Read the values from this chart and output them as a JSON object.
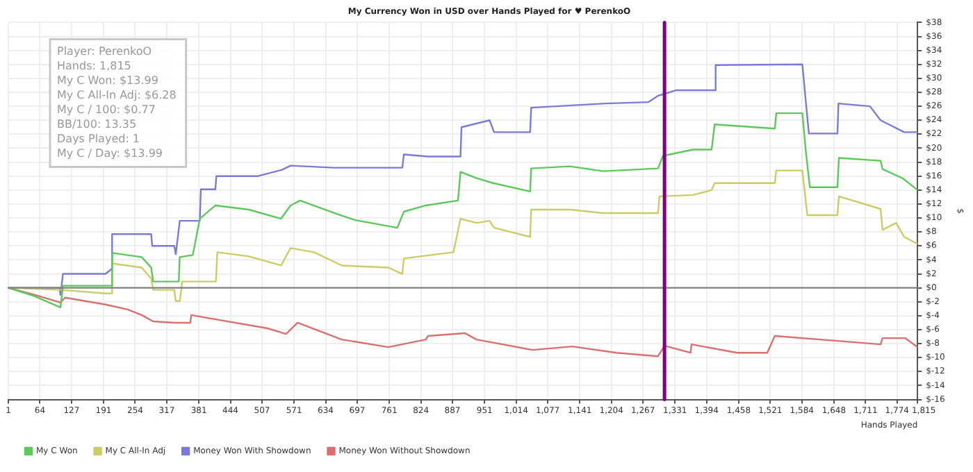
{
  "chart_data": {
    "type": "line",
    "title": "My Currency Won in USD over Hands Played for ♥ PerenkoO",
    "xlabel": "Hands Played",
    "ylabel": "$",
    "xlim": [
      1,
      1815
    ],
    "xticks": [
      1,
      64,
      127,
      191,
      254,
      317,
      381,
      444,
      507,
      571,
      634,
      697,
      761,
      824,
      887,
      951,
      {
        "value": 1014,
        "label": "1,014"
      },
      {
        "value": 1077,
        "label": "1,077"
      },
      {
        "value": 1141,
        "label": "1,141"
      },
      {
        "value": 1204,
        "label": "1,204"
      },
      {
        "value": 1267,
        "label": "1,267"
      },
      {
        "value": 1331,
        "label": "1,331"
      },
      {
        "value": 1394,
        "label": "1,394"
      },
      {
        "value": 1458,
        "label": "1,458"
      },
      {
        "value": 1521,
        "label": "1,521"
      },
      {
        "value": 1584,
        "label": "1,584"
      },
      {
        "value": 1648,
        "label": "1,648"
      },
      {
        "value": 1711,
        "label": "1,711"
      },
      {
        "value": 1774,
        "label": "1,774"
      },
      {
        "value": 1815,
        "label": "1,815"
      }
    ],
    "ylim": [
      -16,
      38
    ],
    "yticks": [
      {
        "value": -16,
        "label": "$-16"
      },
      {
        "value": -14,
        "label": "$-14"
      },
      {
        "value": -12,
        "label": "$-12"
      },
      {
        "value": -10,
        "label": "$-10"
      },
      {
        "value": -8,
        "label": "$-8"
      },
      {
        "value": -6,
        "label": "$-6"
      },
      {
        "value": -4,
        "label": "$-4"
      },
      {
        "value": -2,
        "label": "$-2"
      },
      {
        "value": 0,
        "label": "$0"
      },
      {
        "value": 2,
        "label": "$2"
      },
      {
        "value": 4,
        "label": "$4"
      },
      {
        "value": 6,
        "label": "$6"
      },
      {
        "value": 8,
        "label": "$8"
      },
      {
        "value": 10,
        "label": "$10"
      },
      {
        "value": 12,
        "label": "$12"
      },
      {
        "value": 14,
        "label": "$14"
      },
      {
        "value": 16,
        "label": "$16"
      },
      {
        "value": 18,
        "label": "$18"
      },
      {
        "value": 20,
        "label": "$20"
      },
      {
        "value": 22,
        "label": "$22"
      },
      {
        "value": 24,
        "label": "$24"
      },
      {
        "value": 26,
        "label": "$26"
      },
      {
        "value": 28,
        "label": "$28"
      },
      {
        "value": 30,
        "label": "$30"
      },
      {
        "value": 32,
        "label": "$32"
      },
      {
        "value": 34,
        "label": "$34"
      },
      {
        "value": 36,
        "label": "$36"
      },
      {
        "value": 38,
        "label": "$38"
      }
    ],
    "grid": true,
    "legend": "bottom left",
    "marker": "none",
    "line_style": "solid",
    "series": [
      {
        "name": "My C Won",
        "color": "#5cc85c",
        "x": [
          1,
          53,
          105,
          110,
          207,
          208,
          267,
          286,
          290,
          341,
          343,
          369,
          383,
          414,
          481,
          545,
          564,
          583,
          656,
          693,
          777,
          790,
          834,
          898,
          903,
          935,
          968,
          1042,
          1044,
          1121,
          1188,
          1297,
          1307,
          1367,
          1404,
          1410,
          1530,
          1533,
          1585,
          1592,
          1600,
          1655,
          1658,
          1741,
          1745,
          1785,
          1815
        ],
        "values": [
          0,
          -1.2,
          -2.8,
          0.3,
          0.3,
          5.0,
          4.4,
          2.9,
          0.9,
          0.9,
          4.4,
          4.7,
          9.9,
          11.8,
          11.2,
          9.9,
          11.8,
          12.5,
          10.6,
          9.7,
          8.6,
          10.9,
          11.8,
          12.5,
          16.6,
          15.7,
          15.0,
          13.8,
          17.1,
          17.4,
          16.7,
          17.1,
          18.9,
          19.8,
          19.8,
          23.4,
          22.8,
          25.0,
          25.0,
          19.5,
          14.4,
          14.4,
          18.6,
          18.2,
          17.0,
          15.7,
          13.99
        ]
      },
      {
        "name": "My C All-In Adj",
        "color": "#cccc66",
        "x": [
          1,
          105,
          195,
          207,
          208,
          267,
          286,
          290,
          332,
          335,
          343,
          348,
          369,
          415,
          418,
          481,
          545,
          564,
          611,
          666,
          759,
          787,
          790,
          889,
          903,
          935,
          961,
          970,
          1042,
          1044,
          1121,
          1188,
          1297,
          1300,
          1367,
          1404,
          1410,
          1530,
          1533,
          1585,
          1595,
          1655,
          1658,
          1741,
          1745,
          1772,
          1788,
          1815
        ],
        "values": [
          0,
          -0.3,
          -0.8,
          -0.8,
          3.5,
          2.9,
          1.3,
          -0.3,
          -0.3,
          -1.9,
          -1.9,
          0.9,
          0.9,
          0.9,
          5.1,
          4.5,
          3.2,
          5.7,
          5.1,
          3.2,
          2.9,
          2.0,
          4.2,
          5.1,
          9.9,
          9.3,
          9.6,
          8.6,
          7.3,
          11.2,
          11.2,
          10.7,
          10.7,
          13.1,
          13.3,
          14.0,
          15.0,
          15.0,
          16.8,
          16.8,
          10.4,
          10.4,
          13.1,
          11.3,
          8.3,
          9.3,
          7.3,
          6.28
        ]
      },
      {
        "name": "Money Won With Showdown",
        "color": "#7a7ad8",
        "x": [
          1,
          103,
          105,
          110,
          195,
          207,
          208,
          286,
          288,
          332,
          335,
          343,
          383,
          385,
          414,
          416,
          499,
          547,
          564,
          651,
          787,
          790,
          838,
          903,
          905,
          961,
          970,
          1042,
          1044,
          1191,
          1278,
          1297,
          1334,
          1410,
          1412,
          1585,
          1592,
          1598,
          1655,
          1657,
          1720,
          1741,
          1788,
          1815
        ],
        "values": [
          0,
          0,
          -1.0,
          2.0,
          2.0,
          2.7,
          7.7,
          7.7,
          6.0,
          6.0,
          4.8,
          9.6,
          9.6,
          14.1,
          14.1,
          16.0,
          16.0,
          16.9,
          17.5,
          17.2,
          17.2,
          19.1,
          18.8,
          18.8,
          23.0,
          24.0,
          22.3,
          22.3,
          25.8,
          26.4,
          26.6,
          27.5,
          28.3,
          28.3,
          31.9,
          32.0,
          26.6,
          22.1,
          22.1,
          26.4,
          26.0,
          24.0,
          22.3,
          22.3
        ]
      },
      {
        "name": "Money Won Without Showdown",
        "color": "#d87070",
        "x": [
          1,
          53,
          105,
          114,
          195,
          239,
          267,
          290,
          332,
          364,
          366,
          397,
          518,
          555,
          578,
          666,
          759,
          834,
          838,
          912,
          935,
          1047,
          1126,
          1214,
          1297,
          1310,
          1362,
          1364,
          1455,
          1515,
          1530,
          1673,
          1741,
          1745,
          1790,
          1815
        ],
        "values": [
          0,
          -1.0,
          -2.1,
          -1.4,
          -2.4,
          -3.1,
          -3.9,
          -4.8,
          -5.0,
          -5.0,
          -3.9,
          -4.3,
          -5.8,
          -6.6,
          -5.0,
          -7.4,
          -8.5,
          -7.4,
          -6.9,
          -6.5,
          -7.4,
          -8.9,
          -8.4,
          -9.3,
          -9.8,
          -8.3,
          -9.3,
          -8.1,
          -9.3,
          -9.3,
          -6.9,
          -7.7,
          -8.1,
          -7.2,
          -7.2,
          -8.5
        ]
      }
    ],
    "ref_lines": [
      {
        "axis": "y",
        "value": 0,
        "color": "#808080"
      },
      {
        "axis": "x",
        "value": 1310,
        "color": "#800080"
      }
    ],
    "annotations": [
      "Player: PerenkoO",
      "Hands: 1,815",
      "My C Won: $13.99",
      "My C All-In Adj: $6.28",
      "My C / 100: $0.77",
      "BB/100: 13.35",
      "Days Played: 1",
      "My C / Day: $13.99"
    ]
  }
}
